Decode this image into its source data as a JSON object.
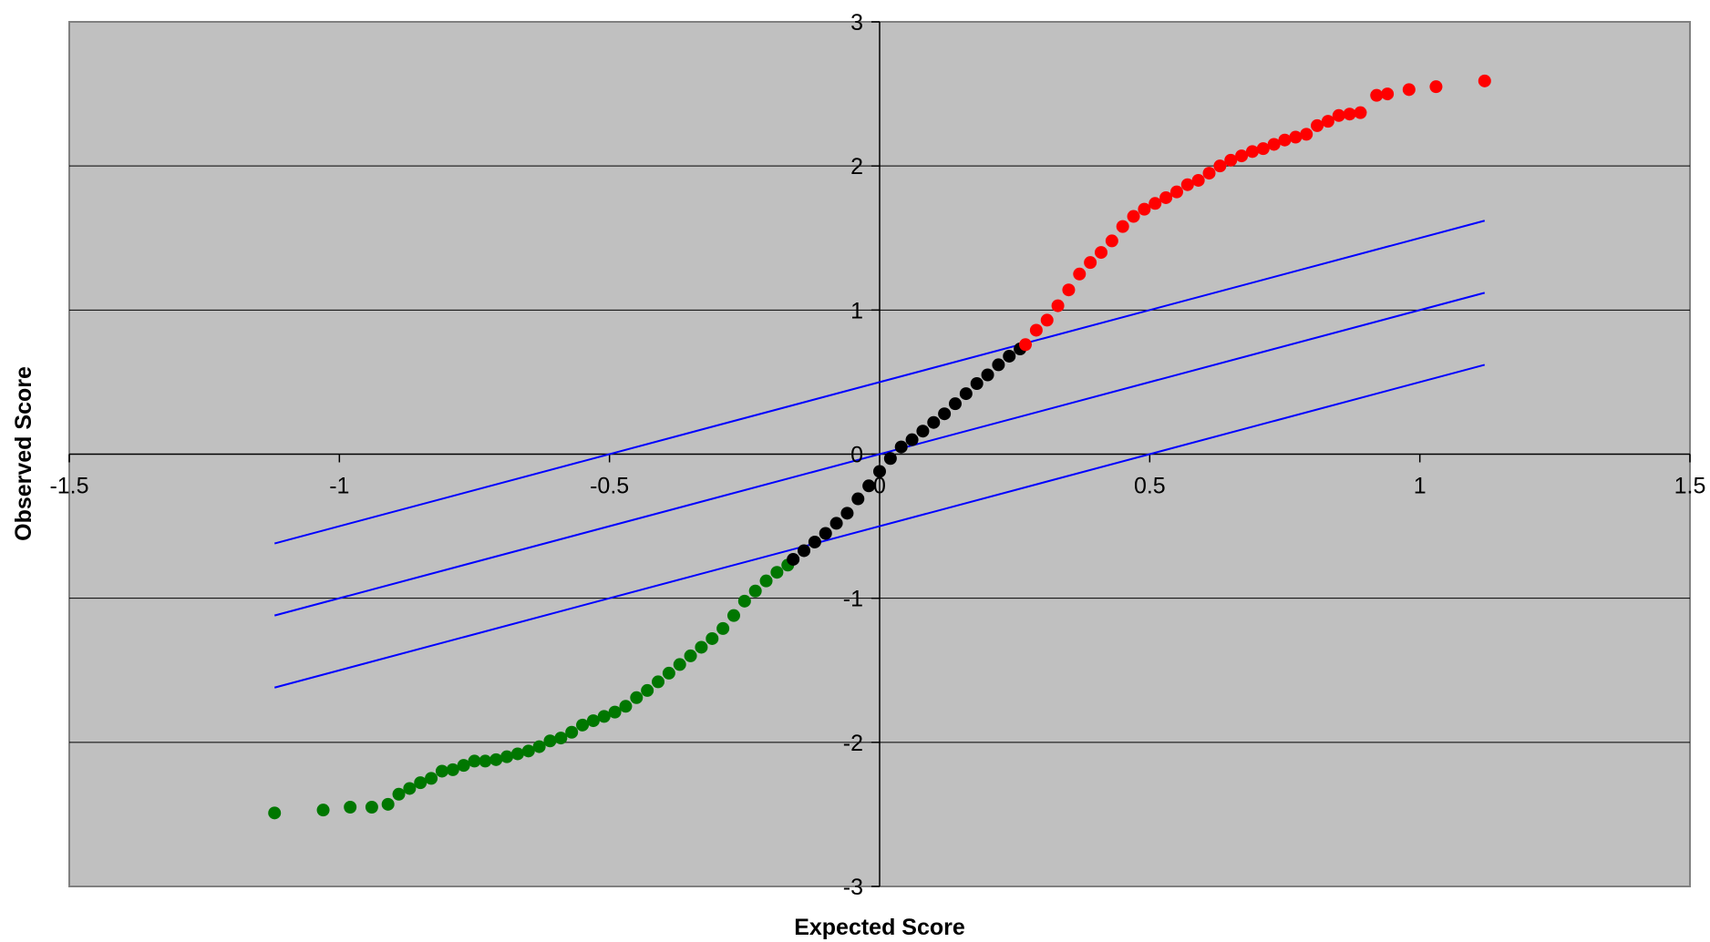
{
  "chart_data": {
    "type": "scatter",
    "title": "",
    "xlabel": "Expected Score",
    "ylabel": "Observed Score",
    "xlim": [
      -1.5,
      1.5
    ],
    "ylim": [
      -3,
      3
    ],
    "x_ticks": [
      "-1.5",
      "-1",
      "-0.5",
      "0",
      "0.5",
      "1",
      "1.5"
    ],
    "y_ticks": [
      "3",
      "2",
      "1",
      "0",
      "-1",
      "-2",
      "-3"
    ],
    "grid": "horizontal",
    "legend": "none",
    "background_color": "#c0c0c0",
    "gridline_color": "#000000",
    "reference_lines": {
      "color": "#0000ff",
      "x_range": [
        -1.12,
        1.12
      ],
      "slope": 1,
      "offsets": [
        0.5,
        0,
        -0.5
      ]
    },
    "series": [
      {
        "color": "#007700",
        "points": [
          [
            -1.12,
            -2.49
          ],
          [
            -1.03,
            -2.47
          ],
          [
            -0.98,
            -2.45
          ],
          [
            -0.94,
            -2.45
          ],
          [
            -0.91,
            -2.43
          ],
          [
            -0.89,
            -2.36
          ],
          [
            -0.87,
            -2.32
          ],
          [
            -0.85,
            -2.28
          ],
          [
            -0.83,
            -2.25
          ],
          [
            -0.81,
            -2.2
          ],
          [
            -0.79,
            -2.19
          ],
          [
            -0.77,
            -2.16
          ],
          [
            -0.75,
            -2.13
          ],
          [
            -0.73,
            -2.13
          ],
          [
            -0.71,
            -2.12
          ],
          [
            -0.69,
            -2.1
          ],
          [
            -0.67,
            -2.08
          ],
          [
            -0.65,
            -2.06
          ],
          [
            -0.63,
            -2.03
          ],
          [
            -0.61,
            -1.99
          ],
          [
            -0.59,
            -1.97
          ],
          [
            -0.57,
            -1.93
          ],
          [
            -0.55,
            -1.88
          ],
          [
            -0.53,
            -1.85
          ],
          [
            -0.51,
            -1.82
          ],
          [
            -0.49,
            -1.79
          ],
          [
            -0.47,
            -1.75
          ],
          [
            -0.45,
            -1.69
          ],
          [
            -0.43,
            -1.64
          ],
          [
            -0.41,
            -1.58
          ],
          [
            -0.39,
            -1.52
          ],
          [
            -0.37,
            -1.46
          ],
          [
            -0.35,
            -1.4
          ],
          [
            -0.33,
            -1.34
          ],
          [
            -0.31,
            -1.28
          ],
          [
            -0.29,
            -1.21
          ],
          [
            -0.27,
            -1.12
          ],
          [
            -0.25,
            -1.02
          ],
          [
            -0.23,
            -0.95
          ],
          [
            -0.21,
            -0.88
          ],
          [
            -0.19,
            -0.82
          ],
          [
            -0.17,
            -0.77
          ]
        ]
      },
      {
        "color": "#000000",
        "points": [
          [
            -0.16,
            -0.73
          ],
          [
            -0.14,
            -0.67
          ],
          [
            -0.12,
            -0.61
          ],
          [
            -0.1,
            -0.55
          ],
          [
            -0.08,
            -0.48
          ],
          [
            -0.06,
            -0.41
          ],
          [
            -0.04,
            -0.31
          ],
          [
            -0.02,
            -0.22
          ],
          [
            0,
            -0.12
          ],
          [
            0.02,
            -0.03
          ],
          [
            0.04,
            0.05
          ],
          [
            0.06,
            0.1
          ],
          [
            0.08,
            0.16
          ],
          [
            0.1,
            0.22
          ],
          [
            0.12,
            0.28
          ],
          [
            0.14,
            0.35
          ],
          [
            0.16,
            0.42
          ],
          [
            0.18,
            0.49
          ],
          [
            0.2,
            0.55
          ],
          [
            0.22,
            0.62
          ],
          [
            0.24,
            0.68
          ],
          [
            0.26,
            0.73
          ]
        ]
      },
      {
        "color": "#ff0000",
        "points": [
          [
            0.27,
            0.76
          ],
          [
            0.29,
            0.86
          ],
          [
            0.31,
            0.93
          ],
          [
            0.33,
            1.03
          ],
          [
            0.35,
            1.14
          ],
          [
            0.37,
            1.25
          ],
          [
            0.39,
            1.33
          ],
          [
            0.41,
            1.4
          ],
          [
            0.43,
            1.48
          ],
          [
            0.45,
            1.58
          ],
          [
            0.47,
            1.65
          ],
          [
            0.49,
            1.7
          ],
          [
            0.51,
            1.74
          ],
          [
            0.53,
            1.78
          ],
          [
            0.55,
            1.82
          ],
          [
            0.57,
            1.87
          ],
          [
            0.59,
            1.9
          ],
          [
            0.61,
            1.95
          ],
          [
            0.63,
            2.0
          ],
          [
            0.65,
            2.04
          ],
          [
            0.67,
            2.07
          ],
          [
            0.69,
            2.1
          ],
          [
            0.71,
            2.12
          ],
          [
            0.73,
            2.15
          ],
          [
            0.75,
            2.18
          ],
          [
            0.77,
            2.2
          ],
          [
            0.79,
            2.22
          ],
          [
            0.81,
            2.28
          ],
          [
            0.83,
            2.31
          ],
          [
            0.85,
            2.35
          ],
          [
            0.87,
            2.36
          ],
          [
            0.89,
            2.37
          ],
          [
            0.92,
            2.49
          ],
          [
            0.94,
            2.5
          ],
          [
            0.98,
            2.53
          ],
          [
            1.03,
            2.55
          ],
          [
            1.12,
            2.59
          ]
        ]
      }
    ]
  }
}
